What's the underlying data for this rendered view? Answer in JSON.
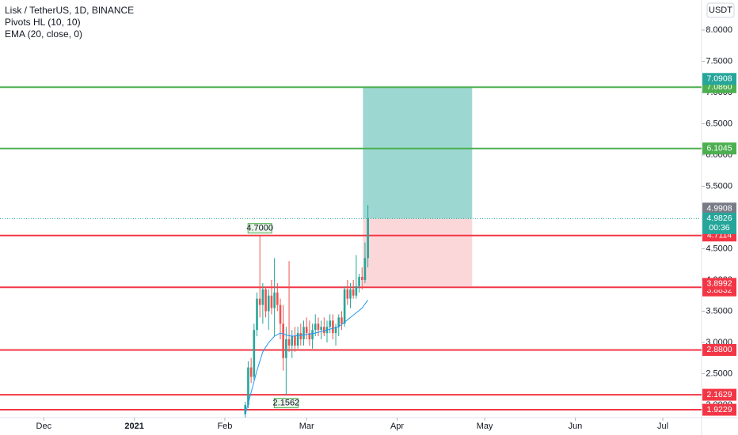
{
  "chart_data": {
    "type": "candlestick",
    "title": "Lisk / TetherUS, 1D, BINANCE",
    "indicators": [
      "Pivots HL (10, 10)",
      "EMA (20, close, 0)"
    ],
    "currency": "USDT",
    "up_color": "#26a69a",
    "down_color": "#ef5350",
    "xlim": [
      0,
      240
    ],
    "xticks": [
      {
        "value": 15,
        "label": "Dec"
      },
      {
        "value": 46,
        "label": "2021"
      },
      {
        "value": 77,
        "label": "Feb"
      },
      {
        "value": 105,
        "label": "Mar"
      },
      {
        "value": 136,
        "label": "Apr"
      },
      {
        "value": 166,
        "label": "May"
      },
      {
        "value": 197,
        "label": "Jun"
      },
      {
        "value": 227,
        "label": "Jul"
      }
    ],
    "ylim": [
      1.797,
      8.481
    ],
    "yticks": [
      {
        "value": 2,
        "label": "2.0000"
      },
      {
        "value": 2.5,
        "label": "2.5000"
      },
      {
        "value": 3,
        "label": "3.0000"
      },
      {
        "value": 3.5,
        "label": "3.5000"
      },
      {
        "value": 4,
        "label": "4.0000"
      },
      {
        "value": 4.5,
        "label": "4.5000"
      },
      {
        "value": 5.5,
        "label": "5.5000"
      },
      {
        "value": 6,
        "label": "6.0000"
      },
      {
        "value": 6.5,
        "label": "6.5000"
      },
      {
        "value": 7,
        "label": "7.0000"
      },
      {
        "value": 7.5,
        "label": "7.5000"
      },
      {
        "value": 8,
        "label": "8.0000"
      }
    ],
    "candles": {
      "x": [
        84,
        85,
        86,
        87,
        88,
        89,
        90,
        91,
        92,
        93,
        94,
        95,
        96,
        97,
        98,
        99,
        100,
        101,
        102,
        103,
        104,
        105,
        106,
        107,
        108,
        109,
        110,
        111,
        112,
        113,
        114,
        115,
        116,
        117,
        118,
        119,
        120,
        121,
        122,
        123,
        124,
        125,
        126
      ],
      "open": [
        1.85,
        2.0,
        2.6,
        2.45,
        3.2,
        3.7,
        3.6,
        3.85,
        3.5,
        3.75,
        3.55,
        3.8,
        3.6,
        3.3,
        2.75,
        3.05,
        2.95,
        3.1,
        2.95,
        3.15,
        3.05,
        3.25,
        3.15,
        3.05,
        3.2,
        3.3,
        3.2,
        3.25,
        3.15,
        3.25,
        3.35,
        3.15,
        3.25,
        3.4,
        3.3,
        3.85,
        3.7,
        3.85,
        3.75,
        3.9,
        4.05,
        4.0,
        4.35
      ],
      "high": [
        2.05,
        2.7,
        2.75,
        3.3,
        3.8,
        4.7,
        3.95,
        3.9,
        3.85,
        4.0,
        4.35,
        3.95,
        3.7,
        3.6,
        3.25,
        4.3,
        3.2,
        3.25,
        3.25,
        3.3,
        3.35,
        3.4,
        3.35,
        3.3,
        3.45,
        3.4,
        3.35,
        3.4,
        3.35,
        3.45,
        3.45,
        3.3,
        3.45,
        3.5,
        3.9,
        4.0,
        3.95,
        4.0,
        4.4,
        4.1,
        4.2,
        4.6,
        5.2
      ],
      "low": [
        1.8,
        1.95,
        2.35,
        2.4,
        3.1,
        3.4,
        3.3,
        3.4,
        3.2,
        3.45,
        3.1,
        3.5,
        3.05,
        2.55,
        2.1562,
        2.85,
        2.75,
        2.85,
        2.9,
        2.95,
        2.95,
        3.05,
        2.95,
        2.9,
        3.1,
        3.1,
        3.05,
        3.1,
        3.0,
        3.15,
        3.05,
        2.95,
        3.1,
        3.2,
        3.25,
        3.6,
        3.55,
        3.7,
        3.7,
        3.8,
        3.85,
        3.95,
        4.2
      ],
      "close": [
        2.0,
        2.6,
        2.45,
        3.2,
        3.7,
        3.6,
        3.85,
        3.5,
        3.75,
        3.55,
        3.8,
        3.6,
        3.3,
        2.75,
        3.05,
        2.95,
        3.1,
        2.95,
        3.15,
        3.05,
        3.25,
        3.15,
        3.05,
        3.2,
        3.3,
        3.2,
        3.25,
        3.15,
        3.25,
        3.35,
        3.15,
        3.25,
        3.4,
        3.3,
        3.85,
        3.7,
        3.85,
        3.75,
        3.9,
        4.05,
        4.0,
        4.35,
        4.9826
      ]
    },
    "ema": {
      "color": "#2196f3",
      "x": [
        84,
        86,
        88,
        90,
        92,
        94,
        96,
        98,
        100,
        104,
        108,
        112,
        116,
        120,
        124,
        126
      ],
      "values": [
        1.85,
        2.2,
        2.55,
        2.85,
        3.0,
        3.1,
        3.15,
        3.12,
        3.1,
        3.12,
        3.15,
        3.2,
        3.25,
        3.4,
        3.55,
        3.68
      ]
    },
    "pivots": [
      {
        "x": 89,
        "value": 4.7,
        "label": "4.7000"
      },
      {
        "x": 98,
        "value": 2.1562,
        "label": "2.1562"
      }
    ],
    "levels": [
      {
        "value": 7.086,
        "label": "7.0860",
        "color": "#4caf50"
      },
      {
        "value": 6.1045,
        "label": "6.1045",
        "color": "#4caf50"
      },
      {
        "value": 4.7114,
        "label": "4.7114",
        "color": "#f23645"
      },
      {
        "value": 3.8832,
        "label": "3.8832",
        "color": "#f23645"
      },
      {
        "value": 2.88,
        "label": "2.8800",
        "color": "#f23645"
      },
      {
        "value": 2.1629,
        "label": "2.1629",
        "color": "#f23645"
      },
      {
        "value": 1.9229,
        "label": "1.9229",
        "color": "#f23645"
      }
    ],
    "position": {
      "x": [
        124.3,
        161.7
      ],
      "target": 7.0908,
      "target_label": "7.0908",
      "entry": 4.9826,
      "entry_label": "4.9826",
      "stop": 3.8992,
      "stop_label": "3.8992"
    },
    "marker": {
      "value": 4.9908,
      "label": "4.9908"
    },
    "countdown": "00:36"
  }
}
